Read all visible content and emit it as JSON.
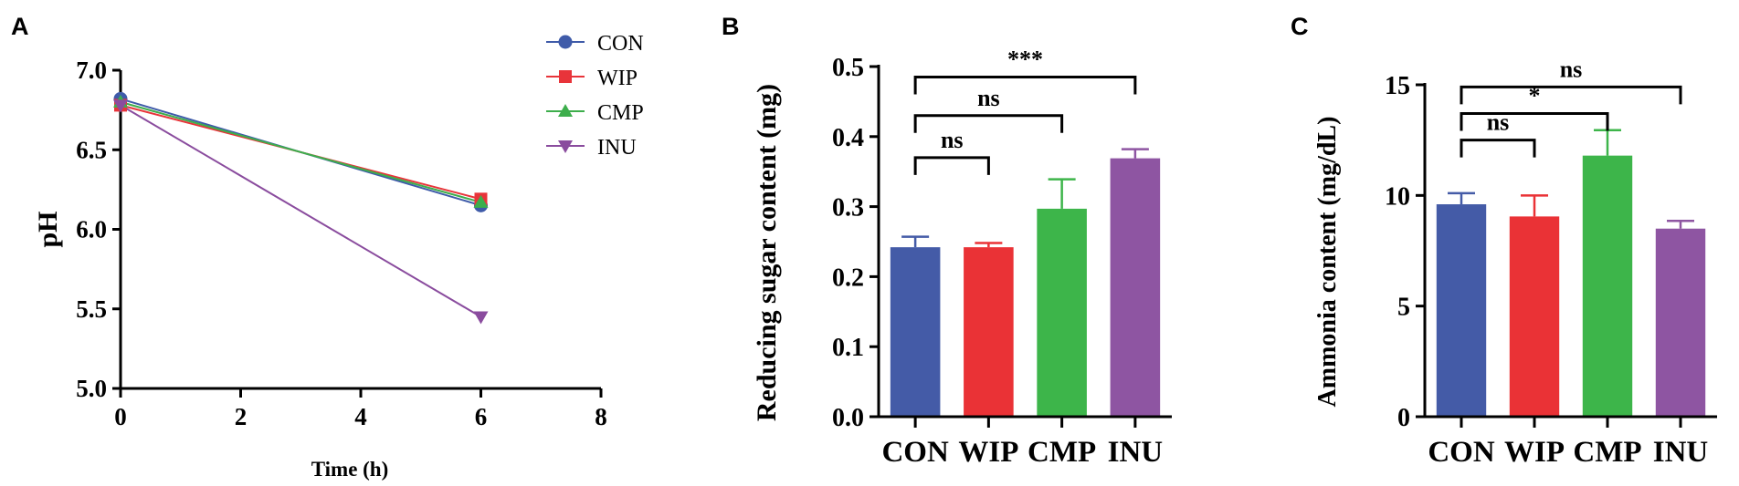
{
  "panels": {
    "a": "A",
    "b": "B",
    "c": "C"
  },
  "chart_data": [
    {
      "type": "line",
      "panel": "A",
      "xlabel": "Time (h)",
      "ylabel": "pH",
      "xlim": [
        0,
        8
      ],
      "ylim": [
        5.0,
        7.0
      ],
      "xticks": [
        "0",
        "2",
        "4",
        "6",
        "8"
      ],
      "yticks": [
        "5.0",
        "5.5",
        "6.0",
        "6.5",
        "7.0"
      ],
      "x": [
        0,
        6
      ],
      "series": [
        {
          "name": "CON",
          "values": [
            6.82,
            6.15
          ],
          "color": "#3f5ba9",
          "marker": "circle"
        },
        {
          "name": "WIP",
          "values": [
            6.78,
            6.19
          ],
          "color": "#e8343a",
          "marker": "square"
        },
        {
          "name": "CMP",
          "values": [
            6.8,
            6.17
          ],
          "color": "#3dae4c",
          "marker": "triangle-up"
        },
        {
          "name": "INU",
          "values": [
            6.78,
            5.45
          ],
          "color": "#8a4c9e",
          "marker": "triangle-down"
        }
      ],
      "legend": "top-right"
    },
    {
      "type": "bar",
      "panel": "B",
      "ylabel": "Reducing sugar content (mg)",
      "ylim": [
        0,
        0.5
      ],
      "yticks": [
        "0.0",
        "0.1",
        "0.2",
        "0.3",
        "0.4",
        "0.5"
      ],
      "categories": [
        "CON",
        "WIP",
        "CMP",
        "INU"
      ],
      "values": [
        0.242,
        0.242,
        0.297,
        0.369
      ],
      "errors": [
        0.015,
        0.006,
        0.042,
        0.013
      ],
      "colors": [
        "#445ba7",
        "#ea3236",
        "#3db54a",
        "#8e55a2"
      ],
      "significance": [
        {
          "from": "CON",
          "to": "WIP",
          "label": "ns",
          "level": 0.37
        },
        {
          "from": "CON",
          "to": "CMP",
          "label": "ns",
          "level": 0.43
        },
        {
          "from": "CON",
          "to": "INU",
          "label": "***",
          "level": 0.485
        }
      ]
    },
    {
      "type": "bar",
      "panel": "C",
      "ylabel": "Ammonia content (mg/dL)",
      "ylim": [
        0,
        15
      ],
      "yticks": [
        "0",
        "5",
        "10",
        "15"
      ],
      "categories": [
        "CON",
        "WIP",
        "CMP",
        "INU"
      ],
      "values": [
        9.6,
        9.05,
        11.8,
        8.5
      ],
      "errors": [
        0.5,
        0.95,
        1.15,
        0.35
      ],
      "colors": [
        "#445ba7",
        "#ea3236",
        "#3db54a",
        "#8e55a2"
      ],
      "significance": [
        {
          "from": "CON",
          "to": "WIP",
          "label": "ns",
          "level": 12.5
        },
        {
          "from": "CON",
          "to": "CMP",
          "label": "*",
          "level": 13.7
        },
        {
          "from": "CON",
          "to": "INU",
          "label": "ns",
          "level": 14.9
        }
      ]
    }
  ]
}
